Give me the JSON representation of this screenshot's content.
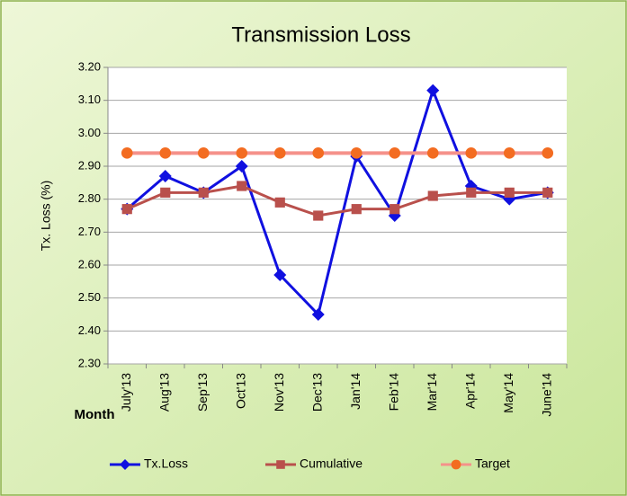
{
  "chart_data": {
    "type": "line",
    "title": "Transmission Loss",
    "y_label": "Tx. Loss (%)",
    "x_label": "Month",
    "categories": [
      "July'13",
      "Aug'13",
      "Sep'13",
      "Oct'13",
      "Nov'13",
      "Dec'13",
      "Jan'14",
      "Feb'14",
      "Mar'14",
      "Apr'14",
      "May'14",
      "June'14"
    ],
    "series": [
      {
        "name": "Tx.Loss",
        "color": "#1010e0",
        "marker": "diamond",
        "values": [
          2.77,
          2.87,
          2.82,
          2.9,
          2.57,
          2.45,
          2.93,
          2.75,
          3.13,
          2.84,
          2.8,
          2.82
        ]
      },
      {
        "name": "Cumulative",
        "color": "#b9504c",
        "marker": "square",
        "values": [
          2.77,
          2.82,
          2.82,
          2.84,
          2.79,
          2.75,
          2.77,
          2.77,
          2.81,
          2.82,
          2.82,
          2.82
        ]
      },
      {
        "name": "Target",
        "color": "#f5918a",
        "marker_color": "#f36c21",
        "marker": "circle",
        "values": [
          2.94,
          2.94,
          2.94,
          2.94,
          2.94,
          2.94,
          2.94,
          2.94,
          2.94,
          2.94,
          2.94,
          2.94
        ]
      }
    ],
    "ylim": [
      2.3,
      3.2
    ],
    "yticks": [
      {
        "value": 2.3,
        "label": "2.30"
      },
      {
        "value": 2.4,
        "label": "2.40"
      },
      {
        "value": 2.5,
        "label": "2.50"
      },
      {
        "value": 2.6,
        "label": "2.60"
      },
      {
        "value": 2.7,
        "label": "2.70"
      },
      {
        "value": 2.8,
        "label": "2.80"
      },
      {
        "value": 2.9,
        "label": "2.90"
      },
      {
        "value": 3.0,
        "label": "3.00"
      },
      {
        "value": 3.1,
        "label": "3.10"
      },
      {
        "value": 3.2,
        "label": "3.20"
      }
    ],
    "grid": true,
    "legend": "bottom"
  }
}
